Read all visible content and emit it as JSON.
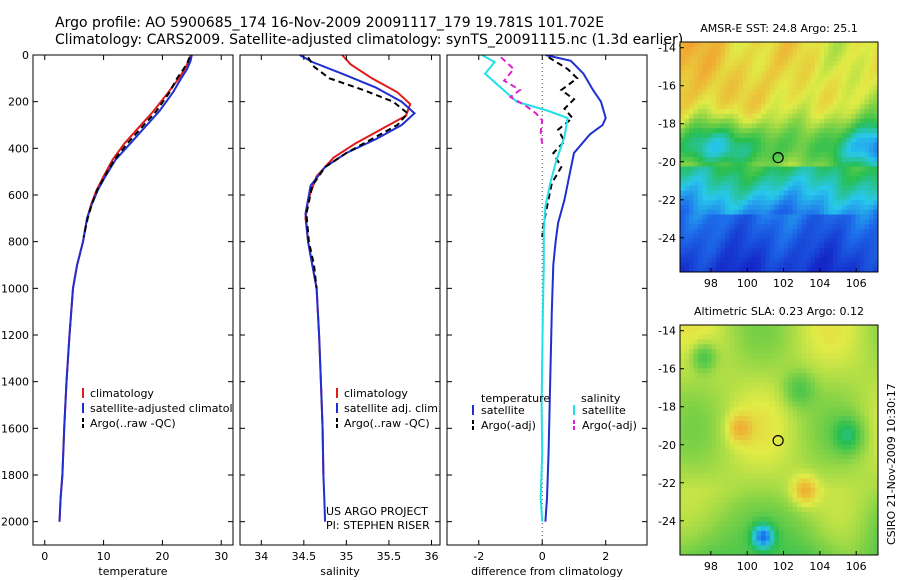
{
  "title_line1": "Argo profile: AO 5900685_174 16-Nov-2009 20091117_179 19.781S 101.702E",
  "title_line2": "Climatology: CARS2009. Satellite-adjusted climatology: synTS_20091115.nc (1.3d earlier)",
  "side_label": "CSIRO 21-Nov-2009 10:30:17",
  "colors": {
    "clim": "#e21a1a",
    "sat": "#1f2fd0",
    "argo": "#000000",
    "sat_sal": "#22e0e8",
    "argo_sal": "#e020d0"
  },
  "chart_data": [
    {
      "id": "temperature",
      "type": "line",
      "xlabel": "temperature",
      "xlim": [
        -2,
        32
      ],
      "ylim": [
        2100,
        0
      ],
      "xticks": [
        0,
        10,
        20,
        30
      ],
      "yticks": [
        0,
        200,
        400,
        600,
        800,
        1000,
        1200,
        1400,
        1600,
        1800,
        2000
      ],
      "legend": [
        "climatology",
        "satellite-adjusted climatology",
        "Argo(..raw -QC)"
      ],
      "series": [
        {
          "name": "climatology",
          "color": "clim",
          "style": "solid",
          "x": [
            24.8,
            24.5,
            23.8,
            22.8,
            21.0,
            18.5,
            16.0,
            13.5,
            11.5,
            10.0,
            8.8,
            7.9,
            7.2,
            6.5,
            5.5,
            4.8,
            4.2,
            3.7,
            3.3,
            3.0,
            2.7,
            2.5
          ],
          "y": [
            0,
            25,
            60,
            100,
            160,
            240,
            310,
            380,
            450,
            520,
            580,
            640,
            700,
            800,
            900,
            1000,
            1200,
            1400,
            1600,
            1800,
            1900,
            2000
          ]
        },
        {
          "name": "satellite-adjusted climatology",
          "color": "sat",
          "style": "solid",
          "x": [
            25.0,
            24.8,
            24.2,
            23.2,
            21.8,
            19.5,
            17.0,
            14.5,
            12.0,
            10.3,
            9.0,
            8.0,
            7.2,
            6.5,
            5.5,
            4.8,
            4.2,
            3.7,
            3.3,
            3.0,
            2.7,
            2.5
          ],
          "y": [
            0,
            25,
            60,
            100,
            160,
            240,
            310,
            380,
            450,
            520,
            580,
            640,
            700,
            800,
            900,
            1000,
            1200,
            1400,
            1600,
            1800,
            1900,
            2000
          ]
        },
        {
          "name": "Argo(..raw -QC)",
          "color": "argo",
          "style": "dashed",
          "x": [
            24.6,
            24.3,
            23.6,
            22.5,
            21.2,
            19.0,
            16.5,
            14.0,
            11.8,
            10.2,
            8.9,
            8.0,
            7.3,
            6.6
          ],
          "y": [
            10,
            30,
            60,
            100,
            160,
            240,
            310,
            380,
            450,
            520,
            580,
            640,
            700,
            780
          ]
        }
      ]
    },
    {
      "id": "salinity",
      "type": "line",
      "xlabel": "salinity",
      "xlim": [
        33.75,
        36.1
      ],
      "ylim": [
        2100,
        0
      ],
      "xticks": [
        34,
        34.5,
        35,
        35.5,
        36
      ],
      "legend": [
        "climatology",
        "satellite adj. clim.",
        "Argo(..raw -QC)"
      ],
      "credit": [
        "US ARGO PROJECT",
        "PI: STEPHEN RISER"
      ],
      "series": [
        {
          "name": "climatology",
          "color": "clim",
          "style": "solid",
          "x": [
            34.95,
            35.05,
            35.3,
            35.6,
            35.75,
            35.7,
            35.4,
            35.1,
            34.85,
            34.65,
            34.55,
            34.52,
            34.55,
            34.6,
            34.65,
            34.68,
            34.7,
            34.72,
            34.73
          ],
          "y": [
            0,
            40,
            100,
            160,
            210,
            260,
            320,
            380,
            440,
            520,
            620,
            700,
            800,
            900,
            1000,
            1200,
            1400,
            1600,
            1800
          ]
        },
        {
          "name": "satellite adj. clim.",
          "color": "sat",
          "style": "solid",
          "x": [
            34.45,
            34.6,
            34.95,
            35.35,
            35.65,
            35.8,
            35.65,
            35.35,
            35.0,
            34.75,
            34.58,
            34.52,
            34.55,
            34.6,
            34.65,
            34.68,
            34.7,
            34.72,
            34.73,
            34.74,
            34.75
          ],
          "y": [
            0,
            30,
            80,
            140,
            200,
            250,
            300,
            360,
            420,
            480,
            560,
            680,
            800,
            900,
            1000,
            1200,
            1400,
            1600,
            1800,
            1900,
            2000
          ]
        },
        {
          "name": "Argo(..raw -QC)",
          "color": "argo",
          "style": "dashed",
          "x": [
            34.55,
            34.62,
            34.8,
            35.2,
            35.55,
            35.72,
            35.6,
            35.3,
            35.0,
            34.75,
            34.6,
            34.53,
            34.56,
            34.62,
            34.65
          ],
          "y": [
            10,
            50,
            100,
            150,
            200,
            250,
            300,
            360,
            420,
            480,
            560,
            680,
            800,
            900,
            1000
          ]
        }
      ]
    },
    {
      "id": "difference",
      "type": "line",
      "xlabel": "difference from climatology",
      "xlim": [
        -3,
        3.3
      ],
      "ylim": [
        2100,
        0
      ],
      "xticks": [
        -2,
        0,
        2
      ],
      "legend_temp_title": "temperature",
      "legend_sal_title": "salinity",
      "legend_temp": [
        "satellite",
        "Argo(-adj)"
      ],
      "legend_sal": [
        "satellite",
        "Argo(-adj)"
      ],
      "series": [
        {
          "name": "temperature satellite",
          "color": "sat",
          "style": "solid",
          "x": [
            0.1,
            0.9,
            1.3,
            1.6,
            1.85,
            2.0,
            1.9,
            1.5,
            1.0,
            0.85,
            0.7,
            0.5,
            0.42,
            0.35,
            0.3,
            0.25,
            0.2,
            0.15,
            0.1
          ],
          "y": [
            0,
            25,
            80,
            150,
            200,
            270,
            300,
            340,
            420,
            520,
            620,
            720,
            800,
            900,
            1100,
            1400,
            1700,
            1900,
            2000
          ]
        },
        {
          "name": "temperature Argo(-adj)",
          "color": "argo",
          "style": "dashed",
          "x": [
            0.2,
            0.8,
            1.1,
            0.6,
            1.0,
            0.7,
            0.95,
            0.5,
            0.7,
            0.35,
            0.6,
            0.3,
            0.15,
            0.05,
            0.0
          ],
          "y": [
            10,
            60,
            100,
            150,
            190,
            230,
            270,
            320,
            370,
            420,
            480,
            550,
            650,
            720,
            780
          ]
        },
        {
          "name": "salinity satellite",
          "color": "sat_sal",
          "style": "solid",
          "x": [
            -1.9,
            -1.5,
            -1.8,
            -1.3,
            -0.8,
            0.2,
            0.8,
            0.7,
            0.45,
            0.25,
            0.1,
            0.05,
            0.05,
            0.02,
            0.0,
            -0.02,
            0.0,
            -0.05,
            0.0
          ],
          "y": [
            0,
            30,
            80,
            140,
            200,
            240,
            270,
            350,
            450,
            550,
            650,
            750,
            900,
            1100,
            1300,
            1500,
            1700,
            1900,
            2000
          ]
        },
        {
          "name": "salinity Argo(-adj)",
          "color": "argo_sal",
          "style": "dashed",
          "x": [
            -1.3,
            -0.9,
            -1.2,
            -0.7,
            -1.0,
            -0.5,
            -0.2,
            0.0,
            -0.05,
            0.0
          ],
          "y": [
            10,
            60,
            110,
            150,
            180,
            220,
            250,
            280,
            330,
            380
          ]
        }
      ]
    },
    {
      "id": "sst_map",
      "type": "heatmap",
      "title": "AMSR-E SST: 24.8 Argo: 25.1",
      "xlim": [
        96.3,
        107.2
      ],
      "ylim": [
        -25.8,
        -13.7
      ],
      "xticks": [
        98,
        100,
        102,
        104,
        106
      ],
      "yticks": [
        -14,
        -16,
        -18,
        -20,
        -22,
        -24
      ],
      "float_location": [
        101.702,
        -19.781
      ]
    },
    {
      "id": "sla_map",
      "type": "heatmap",
      "title": "Altimetric SLA: 0.23 Argo: 0.12",
      "xlim": [
        96.3,
        107.2
      ],
      "ylim": [
        -25.8,
        -13.7
      ],
      "xticks": [
        98,
        100,
        102,
        104,
        106
      ],
      "yticks": [
        -14,
        -16,
        -18,
        -20,
        -22,
        -24
      ],
      "float_location": [
        101.702,
        -19.781
      ]
    }
  ]
}
